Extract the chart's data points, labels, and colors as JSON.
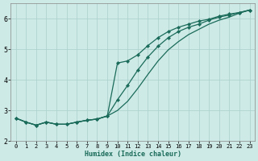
{
  "xlabel": "Humidex (Indice chaleur)",
  "bg_color": "#ceeae6",
  "grid_color": "#aacfcc",
  "line_color": "#1a6b5a",
  "xlim": [
    -0.5,
    23.5
  ],
  "ylim": [
    2.0,
    6.5
  ],
  "xticks": [
    0,
    1,
    2,
    3,
    4,
    5,
    6,
    7,
    8,
    9,
    10,
    11,
    12,
    13,
    14,
    15,
    16,
    17,
    18,
    19,
    20,
    21,
    22,
    23
  ],
  "yticks": [
    2,
    3,
    4,
    5,
    6
  ],
  "line1_x": [
    0,
    1,
    2,
    3,
    4,
    5,
    6,
    7,
    8,
    9,
    10,
    11,
    12,
    13,
    14,
    15,
    16,
    17,
    18,
    19,
    20,
    21,
    22,
    23
  ],
  "line1_y": [
    2.75,
    2.62,
    2.52,
    2.62,
    2.55,
    2.55,
    2.62,
    2.68,
    2.72,
    2.82,
    3.0,
    3.3,
    3.72,
    4.18,
    4.62,
    4.98,
    5.25,
    5.48,
    5.65,
    5.82,
    5.95,
    6.05,
    6.18,
    6.28
  ],
  "line2_x": [
    0,
    1,
    2,
    3,
    4,
    5,
    6,
    7,
    8,
    9,
    10,
    11,
    12,
    13,
    14,
    15,
    16,
    17,
    18,
    19,
    20,
    21,
    22,
    23
  ],
  "line2_y": [
    2.75,
    2.62,
    2.52,
    2.62,
    2.55,
    2.55,
    2.62,
    2.68,
    2.72,
    2.82,
    3.35,
    3.82,
    4.32,
    4.75,
    5.1,
    5.38,
    5.58,
    5.72,
    5.82,
    5.95,
    6.05,
    6.12,
    6.2,
    6.28
  ],
  "line3_x": [
    0,
    1,
    2,
    3,
    4,
    5,
    6,
    7,
    8,
    9,
    10,
    11,
    12,
    13,
    14,
    15,
    16,
    17,
    18,
    19,
    20,
    21,
    22,
    23
  ],
  "line3_y": [
    2.75,
    2.62,
    2.52,
    2.62,
    2.55,
    2.55,
    2.62,
    2.68,
    2.72,
    2.82,
    4.55,
    4.62,
    4.82,
    5.12,
    5.38,
    5.58,
    5.72,
    5.82,
    5.92,
    5.98,
    6.08,
    6.15,
    6.2,
    6.28
  ],
  "line1_markers": false,
  "line2_markers": true,
  "line3_markers": true
}
